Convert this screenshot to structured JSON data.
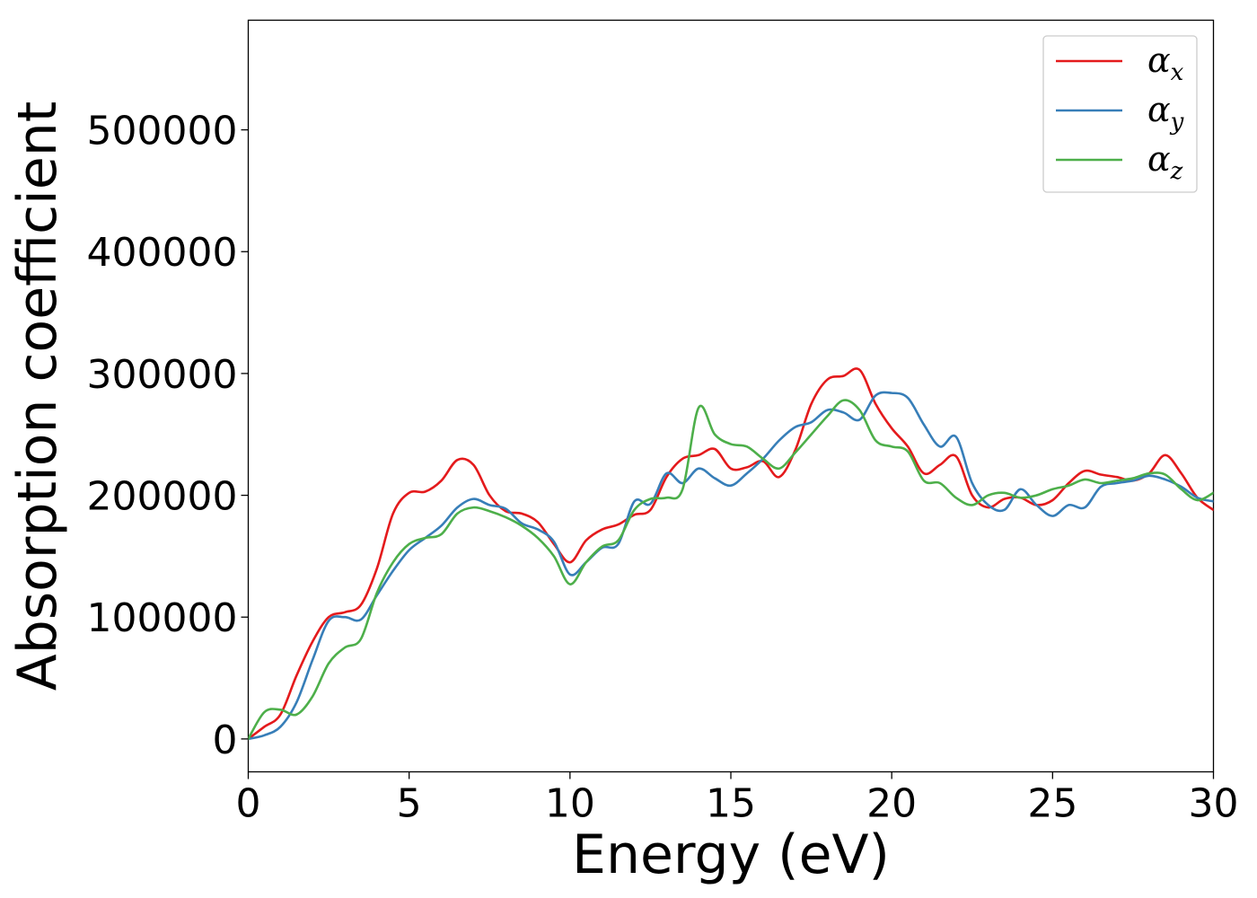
{
  "chart_data": {
    "type": "line",
    "xlabel": "Energy (eV)",
    "ylabel": "Absorption coefficient",
    "xlim": [
      0,
      30
    ],
    "ylim": [
      -27000,
      590000
    ],
    "x_ticks": [
      "0",
      "5",
      "10",
      "15",
      "20",
      "25",
      "30"
    ],
    "y_ticks": [
      "0",
      "100000",
      "200000",
      "300000",
      "400000",
      "500000"
    ],
    "grid": false,
    "legend_position": "top-right",
    "series": [
      {
        "name": "α",
        "subscript": "x",
        "color": "#e41a1c",
        "x": [
          0,
          0.5,
          1.0,
          1.5,
          2.0,
          2.5,
          3.0,
          3.5,
          4.0,
          4.5,
          5.0,
          5.5,
          6.0,
          6.5,
          7.0,
          7.5,
          8.0,
          8.5,
          9.0,
          9.5,
          10.0,
          10.5,
          11.0,
          11.5,
          12.0,
          12.5,
          13.0,
          13.5,
          14.0,
          14.5,
          15.0,
          15.5,
          16.0,
          16.5,
          17.0,
          17.5,
          18.0,
          18.5,
          19.0,
          19.5,
          20.0,
          20.5,
          21.0,
          21.5,
          22.0,
          22.5,
          23.0,
          23.5,
          24.0,
          24.5,
          25.0,
          25.5,
          26.0,
          26.5,
          27.0,
          27.5,
          28.0,
          28.5,
          29.0,
          29.5,
          30.0
        ],
        "y": [
          0,
          10000,
          20000,
          52000,
          80000,
          100000,
          104000,
          110000,
          140000,
          185000,
          202000,
          203000,
          212000,
          229000,
          225000,
          200000,
          187000,
          185000,
          178000,
          160000,
          145000,
          163000,
          172000,
          176000,
          184000,
          188000,
          215000,
          230000,
          233000,
          238000,
          222000,
          223000,
          228000,
          215000,
          237000,
          275000,
          295000,
          298000,
          303000,
          275000,
          255000,
          240000,
          218000,
          225000,
          232000,
          200000,
          190000,
          197000,
          198000,
          192000,
          196000,
          210000,
          220000,
          217000,
          215000,
          212000,
          218000,
          233000,
          218000,
          198000,
          188000
        ]
      },
      {
        "name": "α",
        "subscript": "y",
        "color": "#377eb8",
        "x": [
          0,
          0.5,
          1.0,
          1.5,
          2.0,
          2.5,
          3.0,
          3.5,
          4.0,
          4.5,
          5.0,
          5.5,
          6.0,
          6.5,
          7.0,
          7.5,
          8.0,
          8.5,
          9.0,
          9.5,
          10.0,
          10.5,
          11.0,
          11.5,
          12.0,
          12.5,
          13.0,
          13.5,
          14.0,
          14.5,
          15.0,
          15.5,
          16.0,
          16.5,
          17.0,
          17.5,
          18.0,
          18.5,
          19.0,
          19.5,
          20.0,
          20.5,
          21.0,
          21.5,
          22.0,
          22.5,
          23.0,
          23.5,
          24.0,
          24.5,
          25.0,
          25.5,
          26.0,
          26.5,
          27.0,
          27.5,
          28.0,
          28.5,
          29.0,
          29.5,
          30.0
        ],
        "y": [
          0,
          3000,
          10000,
          30000,
          65000,
          97000,
          100000,
          98000,
          118000,
          138000,
          155000,
          165000,
          175000,
          190000,
          197000,
          192000,
          189000,
          177000,
          172000,
          162000,
          135000,
          145000,
          157000,
          160000,
          195000,
          193000,
          218000,
          210000,
          222000,
          214000,
          208000,
          218000,
          230000,
          245000,
          256000,
          260000,
          270000,
          268000,
          262000,
          282000,
          284000,
          280000,
          258000,
          240000,
          248000,
          210000,
          192000,
          188000,
          205000,
          192000,
          183000,
          192000,
          190000,
          207000,
          210000,
          212000,
          216000,
          213000,
          207000,
          198000,
          195000
        ]
      },
      {
        "name": "α",
        "subscript": "z",
        "color": "#4daf4a",
        "x": [
          0,
          0.5,
          1.0,
          1.5,
          2.0,
          2.5,
          3.0,
          3.5,
          4.0,
          4.5,
          5.0,
          5.5,
          6.0,
          6.5,
          7.0,
          7.5,
          8.0,
          8.5,
          9.0,
          9.5,
          10.0,
          10.5,
          11.0,
          11.5,
          12.0,
          12.5,
          13.0,
          13.5,
          14.0,
          14.5,
          15.0,
          15.5,
          16.0,
          16.5,
          17.0,
          17.5,
          18.0,
          18.5,
          19.0,
          19.5,
          20.0,
          20.5,
          21.0,
          21.5,
          22.0,
          22.5,
          23.0,
          23.5,
          24.0,
          24.5,
          25.0,
          25.5,
          26.0,
          26.5,
          27.0,
          27.5,
          28.0,
          28.5,
          29.0,
          29.5,
          30.0
        ],
        "y": [
          0,
          22000,
          24000,
          20000,
          35000,
          62000,
          75000,
          82000,
          120000,
          145000,
          160000,
          165000,
          168000,
          185000,
          190000,
          187000,
          182000,
          175000,
          165000,
          150000,
          127000,
          145000,
          158000,
          163000,
          188000,
          197000,
          198000,
          205000,
          272000,
          250000,
          242000,
          240000,
          230000,
          222000,
          235000,
          250000,
          265000,
          278000,
          270000,
          245000,
          240000,
          236000,
          212000,
          210000,
          198000,
          192000,
          200000,
          202000,
          198000,
          200000,
          205000,
          208000,
          213000,
          210000,
          212000,
          214000,
          218000,
          217000,
          205000,
          196000,
          202000
        ]
      }
    ]
  }
}
